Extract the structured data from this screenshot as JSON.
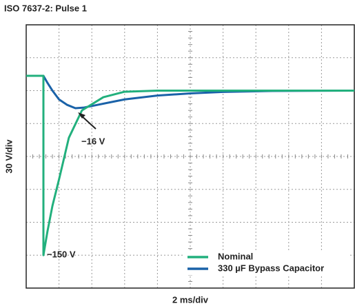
{
  "chart_data": {
    "type": "line",
    "title": "ISO 7637-2: Pulse 1",
    "xlabel": "2 ms/div",
    "ylabel": "30 V/div",
    "xlim": [
      0,
      20
    ],
    "ylim": [
      -180,
      60
    ],
    "xticks": [
      0,
      2,
      4,
      6,
      8,
      10,
      12,
      14,
      16,
      18,
      20
    ],
    "yticks": [
      -180,
      -150,
      -120,
      -90,
      -60,
      -30,
      0,
      30,
      60
    ],
    "grid": true,
    "legend": "lower right",
    "series": [
      {
        "name": "Nominal",
        "color": "#22b07d",
        "x": [
          0,
          1.05,
          1.05,
          1.3,
          1.6,
          2,
          2.6,
          3.4,
          4.7,
          6,
          8,
          12,
          20
        ],
        "values": [
          13.5,
          13.5,
          -150,
          -128,
          -105,
          -81,
          -43,
          -18,
          -6,
          -1,
          0,
          0,
          0
        ]
      },
      {
        "name": "330 µF Bypass Capacitor",
        "color": "#1a62a8",
        "x": [
          0,
          1.05,
          1.3,
          1.6,
          2,
          2.5,
          3,
          3.5,
          4,
          5,
          6,
          8,
          10,
          12,
          15,
          20
        ],
        "values": [
          13.5,
          13.5,
          7,
          0,
          -8,
          -13,
          -16,
          -15.5,
          -14,
          -11,
          -8,
          -4.5,
          -2.5,
          -1.2,
          -0.3,
          0
        ]
      }
    ],
    "annotations": [
      {
        "text": "−16 V"
      },
      {
        "text": "−150 V"
      }
    ]
  }
}
